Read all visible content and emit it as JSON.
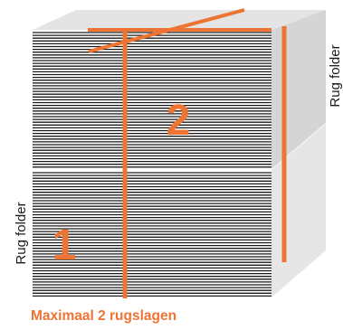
{
  "labels": {
    "top_stack_label": "Rug folder",
    "bottom_stack_label": "Rug folder",
    "top_stack_number": "2",
    "bottom_stack_number": "1"
  },
  "caption": "Maximaal 2 rugslagen",
  "colors": {
    "accent": "#ee7434",
    "stack_front": "#ffffff",
    "stack_side_top": "#d5d5d5",
    "stack_side_bottom": "#e6e6e6",
    "stack_top_face": "#e4e4e4",
    "sheet_lines": "#1a1a1a",
    "label_text": "#1a1a1a"
  }
}
